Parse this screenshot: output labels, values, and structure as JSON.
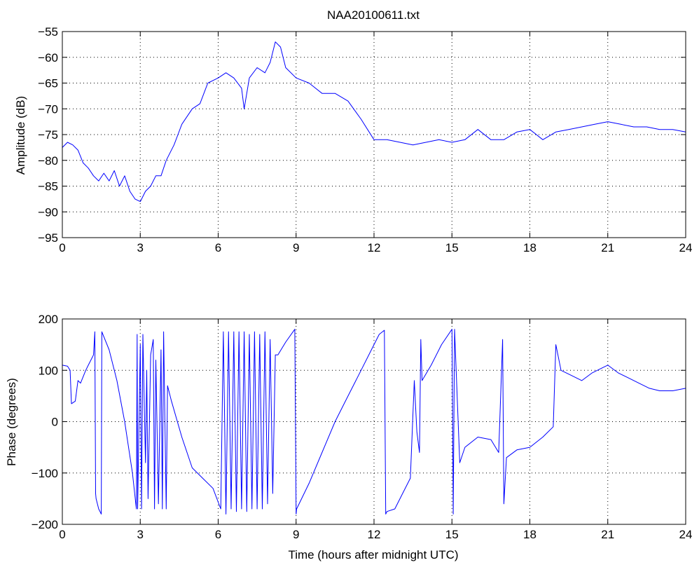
{
  "figure": {
    "title": "NAA20100611.txt"
  },
  "chart_data": [
    {
      "type": "line",
      "title": "NAA20100611.txt",
      "xlabel": "",
      "ylabel": "Amplitude (dB)",
      "xlim": [
        0,
        24
      ],
      "ylim": [
        -95,
        -55
      ],
      "xticks": [
        0,
        3,
        6,
        9,
        12,
        15,
        18,
        21,
        24
      ],
      "yticks": [
        -55,
        -60,
        -65,
        -70,
        -75,
        -80,
        -85,
        -90,
        -95
      ],
      "grid": true,
      "color": "#0000ff",
      "series": [
        {
          "x": [
            0,
            0.2,
            0.4,
            0.6,
            0.8,
            1.0,
            1.2,
            1.4,
            1.6,
            1.8,
            2.0,
            2.2,
            2.4,
            2.6,
            2.8,
            3.0,
            3.2,
            3.4,
            3.6,
            3.8,
            4.0,
            4.3,
            4.6,
            5.0,
            5.3,
            5.6,
            6.0,
            6.3,
            6.6,
            6.9,
            7.0,
            7.2,
            7.5,
            7.8,
            8.0,
            8.2,
            8.4,
            8.6,
            9.0,
            9.5,
            10.0,
            10.5,
            11.0,
            11.5,
            12.0,
            12.5,
            13.0,
            13.5,
            14.0,
            14.5,
            15.0,
            15.5,
            16.0,
            16.5,
            17.0,
            17.5,
            18.0,
            18.5,
            19.0,
            19.5,
            20.0,
            20.5,
            21.0,
            21.5,
            22.0,
            22.5,
            23.0,
            23.5,
            24.0
          ],
          "values": [
            -77.5,
            -76.5,
            -77,
            -78,
            -80.5,
            -81.5,
            -83,
            -84,
            -82.5,
            -84,
            -82,
            -85,
            -83,
            -86,
            -87.5,
            -88,
            -86,
            -85,
            -83,
            -83,
            -80,
            -77,
            -73,
            -70,
            -69,
            -65,
            -64,
            -63,
            -64,
            -66,
            -70,
            -64,
            -62,
            -63,
            -61,
            -57,
            -58,
            -62,
            -64,
            -65,
            -67,
            -67,
            -68.5,
            -72,
            -76,
            -76,
            -76.5,
            -77,
            -76.5,
            -76,
            -76.5,
            -76,
            -74,
            -76,
            -76,
            -74.5,
            -74,
            -76,
            -74.5,
            -74,
            -73.5,
            -73,
            -72.5,
            -73,
            -73.5,
            -73.5,
            -74,
            -74,
            -74.5
          ]
        }
      ]
    },
    {
      "type": "line",
      "title": "",
      "xlabel": "Time (hours after midnight UTC)",
      "ylabel": "Phase (degrees)",
      "xlim": [
        0,
        24
      ],
      "ylim": [
        -200,
        200
      ],
      "xticks": [
        0,
        3,
        6,
        9,
        12,
        15,
        18,
        21,
        24
      ],
      "yticks": [
        200,
        100,
        0,
        -100,
        -200
      ],
      "grid": true,
      "color": "#0000ff",
      "series": [
        {
          "x": [
            0,
            0.2,
            0.3,
            0.35,
            0.5,
            0.6,
            0.7,
            0.9,
            1.0,
            1.2,
            1.25,
            1.28,
            1.3,
            1.4,
            1.5,
            1.52,
            1.8,
            2.1,
            2.4,
            2.7,
            2.85,
            2.88,
            2.9,
            3.0,
            3.05,
            3.1,
            3.2,
            3.25,
            3.3,
            3.4,
            3.5,
            3.55,
            3.6,
            3.7,
            3.8,
            3.85,
            3.9,
            4.0,
            4.05,
            4.2,
            4.6,
            5.0,
            5.4,
            5.8,
            6.1,
            6.2,
            6.3,
            6.4,
            6.5,
            6.6,
            6.7,
            6.8,
            6.9,
            7.0,
            7.1,
            7.2,
            7.3,
            7.4,
            7.5,
            7.6,
            7.7,
            7.8,
            7.9,
            8.0,
            8.1,
            8.2,
            8.3,
            8.6,
            8.95,
            9.0,
            9.02,
            9.5,
            10.0,
            10.5,
            11.0,
            11.5,
            12.0,
            12.2,
            12.4,
            12.45,
            12.5,
            12.8,
            13.1,
            13.4,
            13.55,
            13.65,
            13.75,
            13.8,
            13.85,
            14.2,
            14.6,
            15.0,
            15.05,
            15.1,
            15.3,
            15.5,
            16.0,
            16.5,
            16.8,
            16.95,
            17.0,
            17.1,
            17.5,
            18.0,
            18.5,
            18.9,
            19.0,
            19.2,
            19.6,
            20.0,
            20.4,
            20.8,
            21.0,
            21.4,
            21.8,
            22.2,
            22.6,
            23.0,
            23.5,
            24.0
          ],
          "values": [
            110,
            108,
            100,
            35,
            40,
            80,
            75,
            100,
            110,
            130,
            175,
            -140,
            -150,
            -170,
            -180,
            175,
            140,
            80,
            0,
            -100,
            -170,
            170,
            -170,
            150,
            -170,
            170,
            -80,
            100,
            -150,
            130,
            160,
            -170,
            120,
            -160,
            140,
            -170,
            175,
            -170,
            70,
            40,
            -30,
            -90,
            -110,
            -130,
            -170,
            175,
            -180,
            175,
            -170,
            175,
            -175,
            175,
            -170,
            175,
            -175,
            170,
            -170,
            175,
            -170,
            170,
            -170,
            175,
            -160,
            160,
            -140,
            130,
            130,
            155,
            180,
            -180,
            -170,
            -120,
            -60,
            0,
            50,
            100,
            150,
            170,
            178,
            -180,
            -175,
            -170,
            -140,
            -110,
            80,
            -20,
            -60,
            160,
            80,
            110,
            150,
            180,
            -180,
            180,
            -80,
            -50,
            -30,
            -35,
            -60,
            160,
            -160,
            -70,
            -55,
            -50,
            -30,
            -10,
            150,
            100,
            90,
            80,
            95,
            105,
            110,
            95,
            85,
            75,
            65,
            60,
            60,
            65
          ]
        }
      ]
    }
  ]
}
